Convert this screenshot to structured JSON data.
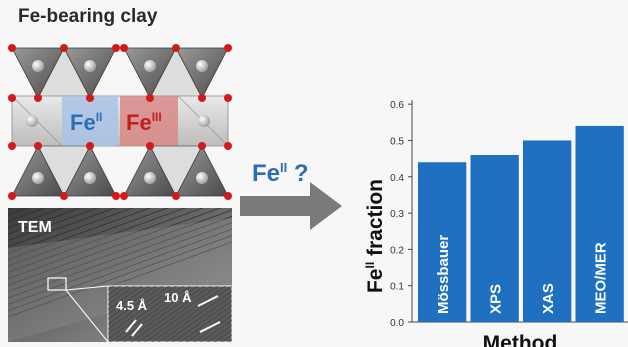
{
  "title": "Fe-bearing clay",
  "structure": {
    "fe2_label": "Fe",
    "fe2_sup": "II",
    "fe3_label": "Fe",
    "fe3_sup": "III",
    "colors": {
      "fe2": "#2f6db3",
      "fe3": "#c0201e",
      "oxygen": "#d21a1a",
      "tetra": "#6e6e6e"
    }
  },
  "tem": {
    "label": "TEM",
    "spacing_small": "4.5 Å",
    "spacing_large": "10 Å"
  },
  "arrow": {
    "label": "Fe",
    "label_sup": "II",
    "label_suffix": " ?",
    "color": "#7a7a7a"
  },
  "chart_data": {
    "type": "bar",
    "categories": [
      "Mössbauer",
      "XPS",
      "XAS",
      "MEO/MER"
    ],
    "values": [
      0.44,
      0.46,
      0.5,
      0.54
    ],
    "ylabel": "Fe",
    "ylabel_sup": "II",
    "ylabel_suffix": " fraction",
    "xlabel": "Method",
    "ylim": [
      0,
      0.65
    ],
    "yticks": [
      "0.0",
      "0.1",
      "0.2",
      "0.3",
      "0.4",
      "0.5",
      "0.6"
    ],
    "bar_color": "#1f70c1",
    "grid": false
  }
}
